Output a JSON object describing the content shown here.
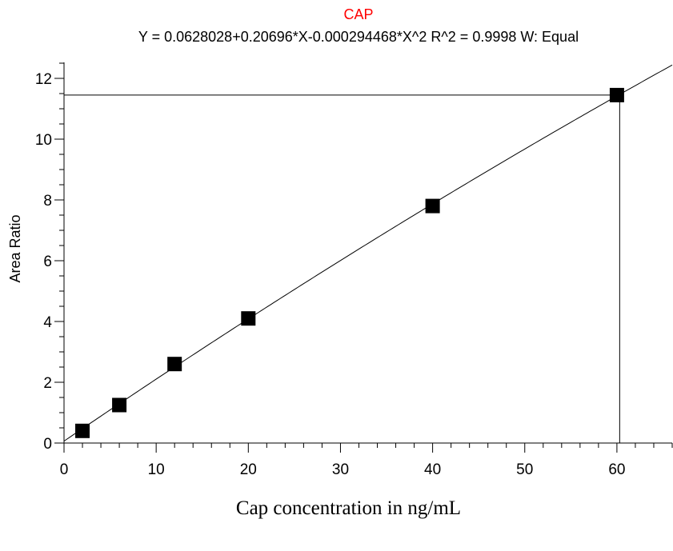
{
  "chart_data": {
    "type": "scatter",
    "title": "CAP",
    "subtitle": "Y = 0.0628028+0.20696*X-0.000294468*X^2   R^2 = 0.9998   W: Equal",
    "xlabel": "Cap concentration in ng/mL",
    "ylabel": "Area Ratio",
    "xlim": [
      0,
      66
    ],
    "ylim": [
      0,
      12.5
    ],
    "x_ticks": [
      0,
      10,
      20,
      30,
      40,
      50,
      60
    ],
    "y_ticks": [
      0,
      2,
      4,
      6,
      8,
      10,
      12
    ],
    "grid": false,
    "fit": {
      "model": "quadratic",
      "coefficients": [
        0.0628028,
        0.20696,
        -0.000294468
      ],
      "r_squared": 0.9998,
      "weighting": "Equal"
    },
    "series": [
      {
        "marker": "square",
        "x": [
          2,
          6,
          12,
          20,
          40,
          60
        ],
        "y": [
          0.4,
          1.25,
          2.6,
          4.1,
          7.8,
          11.45
        ]
      }
    ],
    "crosshair": {
      "x": 60.3,
      "y": 11.45
    },
    "colors": {
      "title": "#ff0000",
      "marks": "#000000",
      "axes": "#000000"
    }
  }
}
